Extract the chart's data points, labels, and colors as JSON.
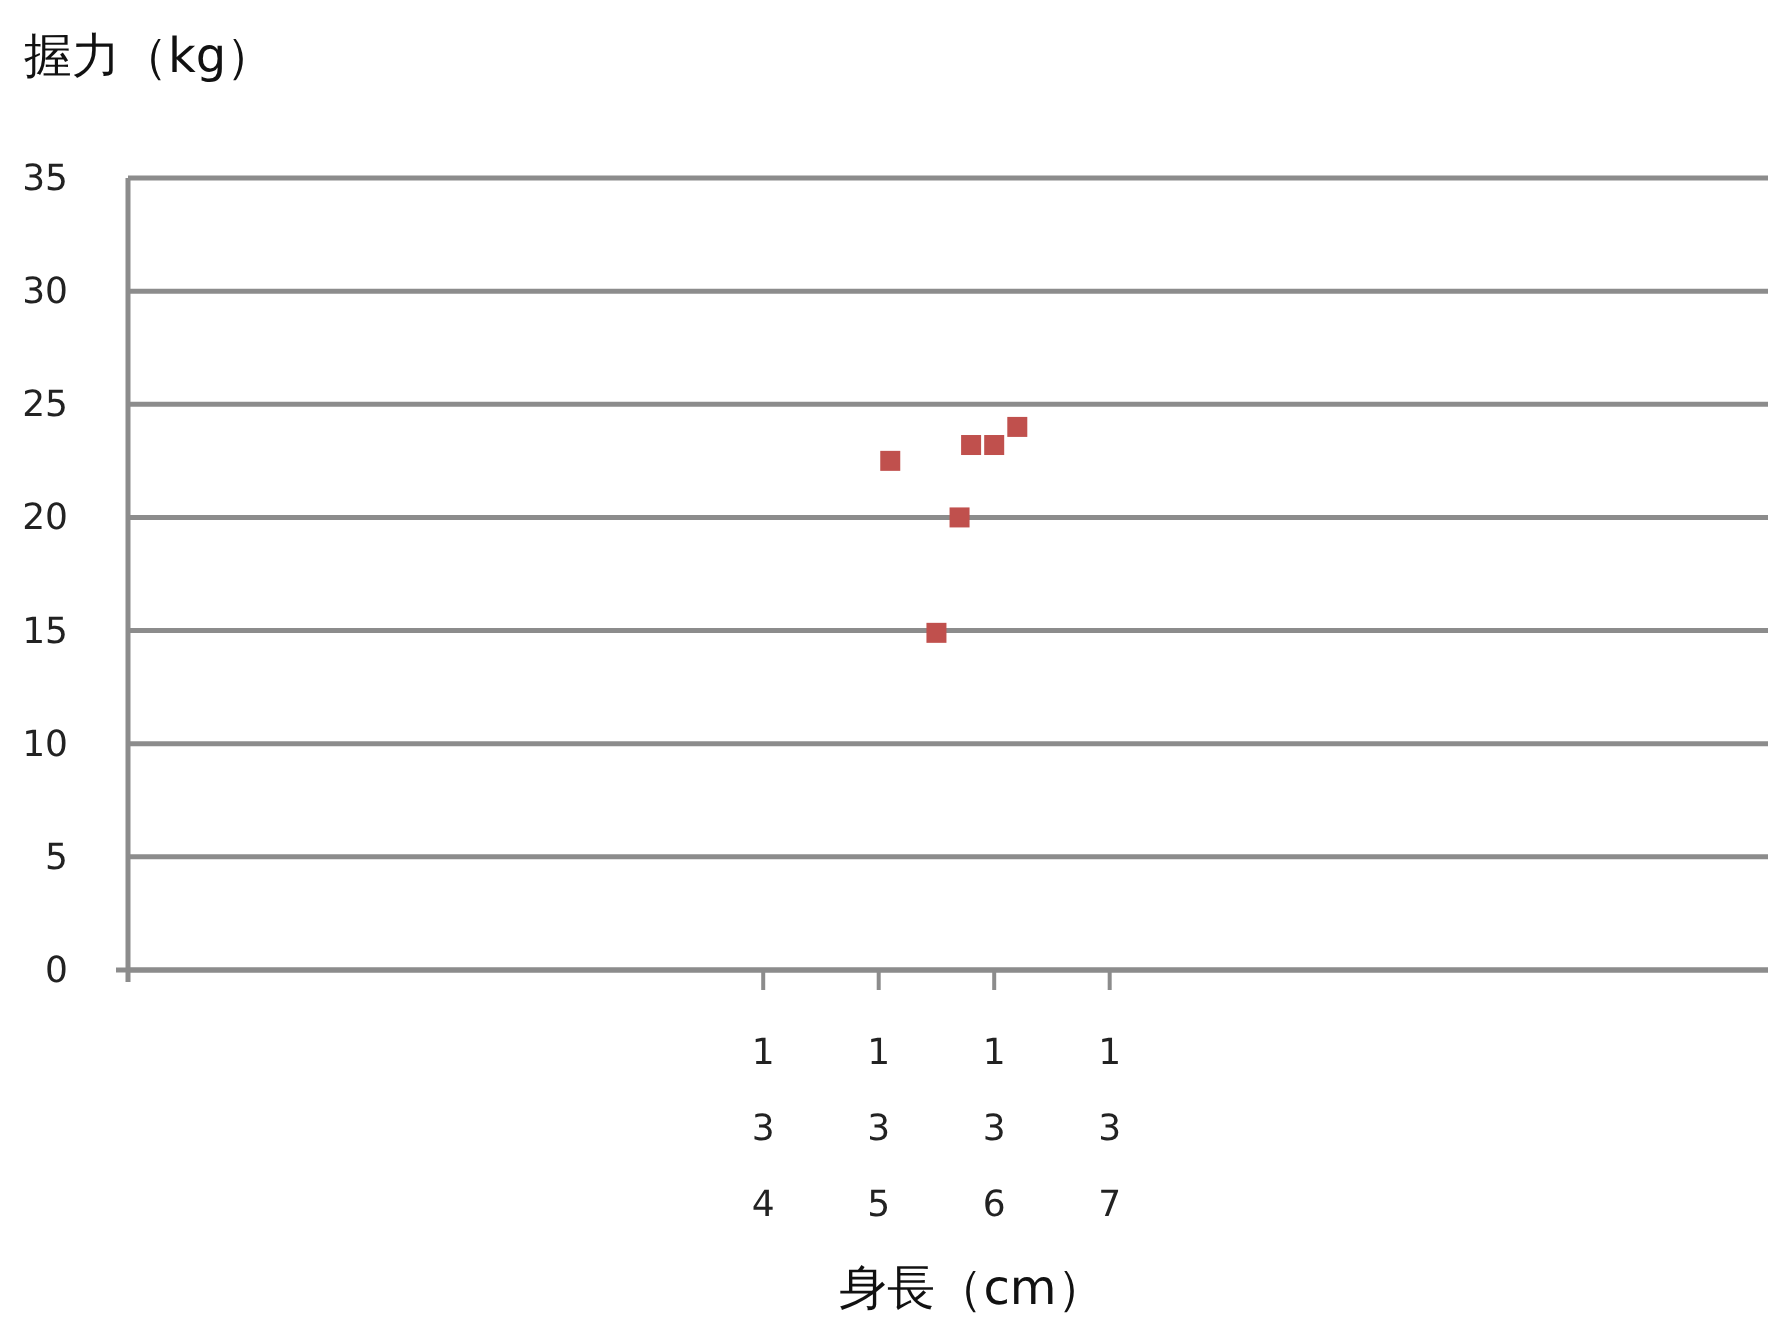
{
  "chart_data": {
    "type": "scatter",
    "xlabel": "身長（cm）",
    "ylabel": "握力（kg）",
    "xlim": [
      128.5,
      142.7
    ],
    "ylim": [
      0,
      35
    ],
    "xticks": [
      134,
      135,
      136,
      137
    ],
    "yticks": [
      0,
      5,
      10,
      15,
      20,
      25,
      30,
      35
    ],
    "grid": "y",
    "marker": "square",
    "series": [
      {
        "color": "#c0504d",
        "x": [
          135.1,
          135.5,
          135.7,
          135.8,
          136.0,
          136.2
        ],
        "values": [
          22.5,
          14.9,
          20,
          23.2,
          23.2,
          24
        ]
      }
    ]
  }
}
